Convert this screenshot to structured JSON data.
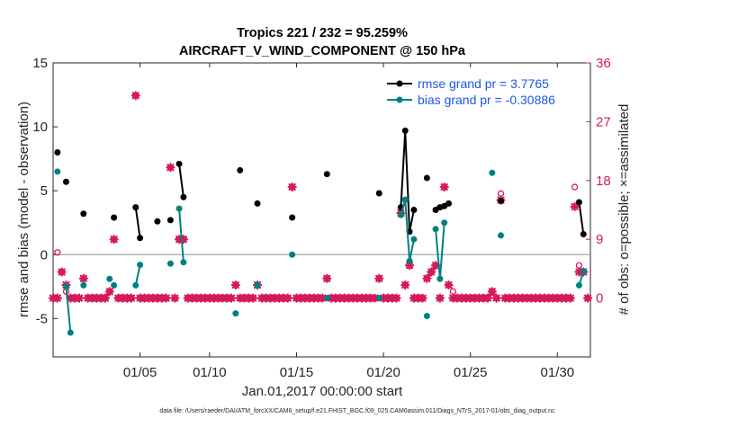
{
  "chart_data": {
    "type": "line",
    "title": "Tropics 221 / 232 = 95.259%",
    "subtitle": "AIRCRAFT_V_WIND_COMPONENT @ 150 hPa",
    "xlabel": "Jan.01,2017 00:00:00 start",
    "ylabel_left": "rmse and bias (model - observation)",
    "ylabel_right": "# of obs: o=possible; ×=assimilated",
    "footer": "data file: /Users/raeder/DAI/ATM_forcXX/CAM6_setup/f.e21.FHIST_BGC.f09_025.CAM6assim.011/Diags_NTrS_2017-01/obs_diag_output.nc",
    "xlim": [
      1.0,
      31.9
    ],
    "ylim_left": [
      -8,
      15
    ],
    "ylim_right": [
      -9,
      36
    ],
    "x_ticks": [
      6,
      10,
      15,
      20,
      25,
      30
    ],
    "x_tick_labels": [
      "01/05",
      "01/10",
      "01/15",
      "01/20",
      "01/25",
      "01/30"
    ],
    "y_ticks_left": [
      -5,
      0,
      5,
      10,
      15
    ],
    "y_tick_labels_left": [
      "-5",
      "0",
      "5",
      "10",
      "15"
    ],
    "y_ticks_right": [
      0,
      9,
      18,
      27,
      36
    ],
    "y_tick_labels_right": [
      "0",
      "9",
      "18",
      "27",
      "36"
    ],
    "zero_line": 0,
    "colors": {
      "rmse": "#000000",
      "bias": "#008080",
      "obs": "#d6195b",
      "right_axis": "#cc1f5e",
      "legend_text": "#1a57e6",
      "zero_line": "#b3b3b3"
    },
    "legend": [
      {
        "label": "rmse grand pr = 3.7765",
        "series": "rmse"
      },
      {
        "label": "bias grand pr = -0.30886",
        "series": "bias"
      }
    ],
    "series": [
      {
        "name": "rmse",
        "segments": [
          [
            [
              1.25,
              8.0
            ]
          ],
          [
            [
              1.75,
              5.7
            ]
          ],
          [
            [
              2.75,
              3.2
            ]
          ],
          [
            [
              4.5,
              2.9
            ]
          ],
          [
            [
              5.75,
              3.7
            ],
            [
              6.0,
              1.3
            ]
          ],
          [
            [
              7.0,
              2.6
            ]
          ],
          [
            [
              7.75,
              2.7
            ]
          ],
          [
            [
              8.25,
              7.1
            ],
            [
              8.5,
              4.5
            ]
          ],
          [
            [
              11.75,
              6.6
            ]
          ],
          [
            [
              12.75,
              4.0
            ]
          ],
          [
            [
              14.75,
              2.9
            ]
          ],
          [
            [
              16.75,
              6.3
            ]
          ],
          [
            [
              19.75,
              4.8
            ]
          ],
          [
            [
              21.0,
              3.7
            ],
            [
              21.25,
              9.7
            ],
            [
              21.5,
              1.8
            ],
            [
              21.75,
              3.5
            ]
          ],
          [
            [
              22.5,
              6.0
            ]
          ],
          [
            [
              23.0,
              3.5
            ],
            [
              23.25,
              3.7
            ],
            [
              23.5,
              3.8
            ],
            [
              23.75,
              4.0
            ]
          ],
          [
            [
              26.75,
              4.2
            ]
          ],
          [
            [
              31.25,
              4.1
            ],
            [
              31.5,
              1.6
            ]
          ]
        ]
      },
      {
        "name": "bias",
        "segments": [
          [
            [
              1.25,
              6.5
            ]
          ],
          [
            [
              1.75,
              -2.5
            ],
            [
              2.0,
              -6.1
            ]
          ],
          [
            [
              2.75,
              -2.4
            ]
          ],
          [
            [
              4.25,
              -1.9
            ]
          ],
          [
            [
              4.5,
              -2.4
            ]
          ],
          [
            [
              5.75,
              -2.4
            ],
            [
              6.0,
              -0.8
            ]
          ],
          [
            [
              7.75,
              -0.7
            ]
          ],
          [
            [
              8.25,
              3.6
            ],
            [
              8.5,
              -0.6
            ]
          ],
          [
            [
              11.5,
              -4.6
            ]
          ],
          [
            [
              12.75,
              -2.4
            ]
          ],
          [
            [
              14.75,
              0.0
            ]
          ],
          [
            [
              16.75,
              -3.4
            ]
          ],
          [
            [
              19.75,
              -3.4
            ]
          ],
          [
            [
              21.0,
              3.1
            ],
            [
              21.25,
              4.3
            ],
            [
              21.5,
              -0.5
            ],
            [
              21.75,
              1.2
            ]
          ],
          [
            [
              22.5,
              -4.8
            ]
          ],
          [
            [
              23.0,
              2.0
            ],
            [
              23.25,
              -1.9
            ],
            [
              23.5,
              2.5
            ]
          ],
          [
            [
              26.25,
              6.4
            ]
          ],
          [
            [
              26.75,
              1.5
            ]
          ],
          [
            [
              31.25,
              -2.4
            ],
            [
              31.5,
              -1.3
            ]
          ]
        ]
      }
    ],
    "obs_possible": [
      [
        1.25,
        7
      ],
      [
        1.5,
        4
      ],
      [
        1.75,
        1
      ],
      [
        2.0,
        0
      ],
      [
        2.25,
        0
      ],
      [
        2.5,
        0
      ],
      [
        2.75,
        3
      ],
      [
        3.0,
        0
      ],
      [
        3.25,
        0
      ],
      [
        3.5,
        0
      ],
      [
        3.75,
        0
      ],
      [
        4.0,
        0
      ],
      [
        4.25,
        1
      ],
      [
        4.5,
        9
      ],
      [
        4.75,
        0
      ],
      [
        5.0,
        0
      ],
      [
        5.25,
        0
      ],
      [
        5.5,
        0
      ],
      [
        5.75,
        31
      ],
      [
        6.0,
        0
      ],
      [
        6.25,
        0
      ],
      [
        6.5,
        0
      ],
      [
        6.75,
        0
      ],
      [
        7.0,
        0
      ],
      [
        7.25,
        0
      ],
      [
        7.5,
        0
      ],
      [
        7.75,
        20
      ],
      [
        8.0,
        0
      ],
      [
        8.25,
        9
      ],
      [
        8.5,
        9
      ],
      [
        8.75,
        0
      ],
      [
        9.0,
        0
      ],
      [
        9.25,
        0
      ],
      [
        9.5,
        0
      ],
      [
        9.75,
        0
      ],
      [
        10.0,
        0
      ],
      [
        10.25,
        0
      ],
      [
        10.5,
        0
      ],
      [
        10.75,
        0
      ],
      [
        11.0,
        0
      ],
      [
        11.25,
        0
      ],
      [
        11.5,
        2
      ],
      [
        11.75,
        0
      ],
      [
        12.0,
        0
      ],
      [
        12.25,
        0
      ],
      [
        12.5,
        0
      ],
      [
        12.75,
        2
      ],
      [
        13.0,
        0
      ],
      [
        13.25,
        0
      ],
      [
        13.5,
        0
      ],
      [
        13.75,
        0
      ],
      [
        14.0,
        0
      ],
      [
        14.25,
        0
      ],
      [
        14.5,
        0
      ],
      [
        14.75,
        17
      ],
      [
        15.0,
        0
      ],
      [
        15.25,
        0
      ],
      [
        15.5,
        0
      ],
      [
        15.75,
        0
      ],
      [
        16.0,
        0
      ],
      [
        16.25,
        0
      ],
      [
        16.5,
        0
      ],
      [
        16.75,
        3
      ],
      [
        17.0,
        0
      ],
      [
        17.25,
        0
      ],
      [
        17.5,
        0
      ],
      [
        17.75,
        0
      ],
      [
        18.0,
        0
      ],
      [
        18.25,
        0
      ],
      [
        18.5,
        0
      ],
      [
        18.75,
        0
      ],
      [
        19.0,
        0
      ],
      [
        19.25,
        0
      ],
      [
        19.5,
        0
      ],
      [
        19.75,
        3
      ],
      [
        20.0,
        0
      ],
      [
        20.25,
        0
      ],
      [
        20.5,
        0
      ],
      [
        20.75,
        0
      ],
      [
        21.0,
        13
      ],
      [
        21.25,
        2
      ],
      [
        21.5,
        5
      ],
      [
        21.75,
        0
      ],
      [
        22.0,
        0
      ],
      [
        22.25,
        0
      ],
      [
        22.5,
        3
      ],
      [
        22.75,
        4
      ],
      [
        23.0,
        5
      ],
      [
        23.25,
        0
      ],
      [
        23.5,
        17
      ],
      [
        23.75,
        2
      ],
      [
        24.0,
        1
      ],
      [
        24.25,
        0
      ],
      [
        24.5,
        0
      ],
      [
        24.75,
        0
      ],
      [
        25.0,
        0
      ],
      [
        25.25,
        0
      ],
      [
        25.5,
        0
      ],
      [
        25.75,
        0
      ],
      [
        26.0,
        0
      ],
      [
        26.25,
        1
      ],
      [
        26.5,
        0
      ],
      [
        26.75,
        16
      ],
      [
        27.0,
        0
      ],
      [
        27.25,
        0
      ],
      [
        27.5,
        0
      ],
      [
        27.75,
        0
      ],
      [
        28.0,
        0
      ],
      [
        28.25,
        0
      ],
      [
        28.5,
        0
      ],
      [
        28.75,
        0
      ],
      [
        29.0,
        0
      ],
      [
        29.25,
        0
      ],
      [
        29.5,
        0
      ],
      [
        29.75,
        0
      ],
      [
        30.0,
        0
      ],
      [
        30.25,
        0
      ],
      [
        30.5,
        0
      ],
      [
        30.75,
        0
      ],
      [
        31.0,
        17
      ],
      [
        31.25,
        5
      ],
      [
        31.5,
        4
      ],
      [
        31.75,
        0
      ]
    ],
    "obs_assimilated": [
      [
        1.0,
        0
      ],
      [
        1.25,
        0
      ],
      [
        1.5,
        4
      ],
      [
        1.75,
        2
      ],
      [
        2.0,
        0
      ],
      [
        2.25,
        0
      ],
      [
        2.5,
        0
      ],
      [
        2.75,
        3
      ],
      [
        3.0,
        0
      ],
      [
        3.25,
        0
      ],
      [
        3.5,
        0
      ],
      [
        3.75,
        0
      ],
      [
        4.0,
        0
      ],
      [
        4.25,
        1
      ],
      [
        4.5,
        9
      ],
      [
        4.75,
        0
      ],
      [
        5.0,
        0
      ],
      [
        5.25,
        0
      ],
      [
        5.5,
        0
      ],
      [
        5.75,
        31
      ],
      [
        6.0,
        0
      ],
      [
        6.25,
        0
      ],
      [
        6.5,
        0
      ],
      [
        6.75,
        0
      ],
      [
        7.0,
        0
      ],
      [
        7.25,
        0
      ],
      [
        7.5,
        0
      ],
      [
        7.75,
        20
      ],
      [
        8.0,
        0
      ],
      [
        8.25,
        9
      ],
      [
        8.5,
        9
      ],
      [
        8.75,
        0
      ],
      [
        9.0,
        0
      ],
      [
        9.25,
        0
      ],
      [
        9.5,
        0
      ],
      [
        9.75,
        0
      ],
      [
        10.0,
        0
      ],
      [
        10.25,
        0
      ],
      [
        10.5,
        0
      ],
      [
        10.75,
        0
      ],
      [
        11.0,
        0
      ],
      [
        11.25,
        0
      ],
      [
        11.5,
        2
      ],
      [
        11.75,
        0
      ],
      [
        12.0,
        0
      ],
      [
        12.25,
        0
      ],
      [
        12.5,
        0
      ],
      [
        12.75,
        2
      ],
      [
        13.0,
        0
      ],
      [
        13.25,
        0
      ],
      [
        13.5,
        0
      ],
      [
        13.75,
        0
      ],
      [
        14.0,
        0
      ],
      [
        14.25,
        0
      ],
      [
        14.5,
        0
      ],
      [
        14.75,
        17
      ],
      [
        15.0,
        0
      ],
      [
        15.25,
        0
      ],
      [
        15.5,
        0
      ],
      [
        15.75,
        0
      ],
      [
        16.0,
        0
      ],
      [
        16.25,
        0
      ],
      [
        16.5,
        0
      ],
      [
        16.75,
        3
      ],
      [
        17.0,
        0
      ],
      [
        17.25,
        0
      ],
      [
        17.5,
        0
      ],
      [
        17.75,
        0
      ],
      [
        18.0,
        0
      ],
      [
        18.25,
        0
      ],
      [
        18.5,
        0
      ],
      [
        18.75,
        0
      ],
      [
        19.0,
        0
      ],
      [
        19.25,
        0
      ],
      [
        19.5,
        0
      ],
      [
        19.75,
        3
      ],
      [
        20.0,
        0
      ],
      [
        20.25,
        0
      ],
      [
        20.5,
        0
      ],
      [
        20.75,
        0
      ],
      [
        21.0,
        13
      ],
      [
        21.25,
        2
      ],
      [
        21.5,
        5
      ],
      [
        21.75,
        0
      ],
      [
        22.0,
        0
      ],
      [
        22.25,
        0
      ],
      [
        22.5,
        3
      ],
      [
        22.75,
        4
      ],
      [
        23.0,
        5
      ],
      [
        23.25,
        0
      ],
      [
        23.5,
        17
      ],
      [
        23.75,
        2
      ],
      [
        24.0,
        0
      ],
      [
        24.25,
        0
      ],
      [
        24.5,
        0
      ],
      [
        24.75,
        0
      ],
      [
        25.0,
        0
      ],
      [
        25.25,
        0
      ],
      [
        25.5,
        0
      ],
      [
        25.75,
        0
      ],
      [
        26.0,
        0
      ],
      [
        26.25,
        1
      ],
      [
        26.5,
        0
      ],
      [
        26.75,
        15
      ],
      [
        27.0,
        0
      ],
      [
        27.25,
        0
      ],
      [
        27.5,
        0
      ],
      [
        27.75,
        0
      ],
      [
        28.0,
        0
      ],
      [
        28.25,
        0
      ],
      [
        28.5,
        0
      ],
      [
        28.75,
        0
      ],
      [
        29.0,
        0
      ],
      [
        29.25,
        0
      ],
      [
        29.5,
        0
      ],
      [
        29.75,
        0
      ],
      [
        30.0,
        0
      ],
      [
        30.25,
        0
      ],
      [
        30.5,
        0
      ],
      [
        30.75,
        0
      ],
      [
        31.0,
        14
      ],
      [
        31.25,
        4
      ],
      [
        31.5,
        4
      ],
      [
        31.75,
        0
      ]
    ]
  }
}
